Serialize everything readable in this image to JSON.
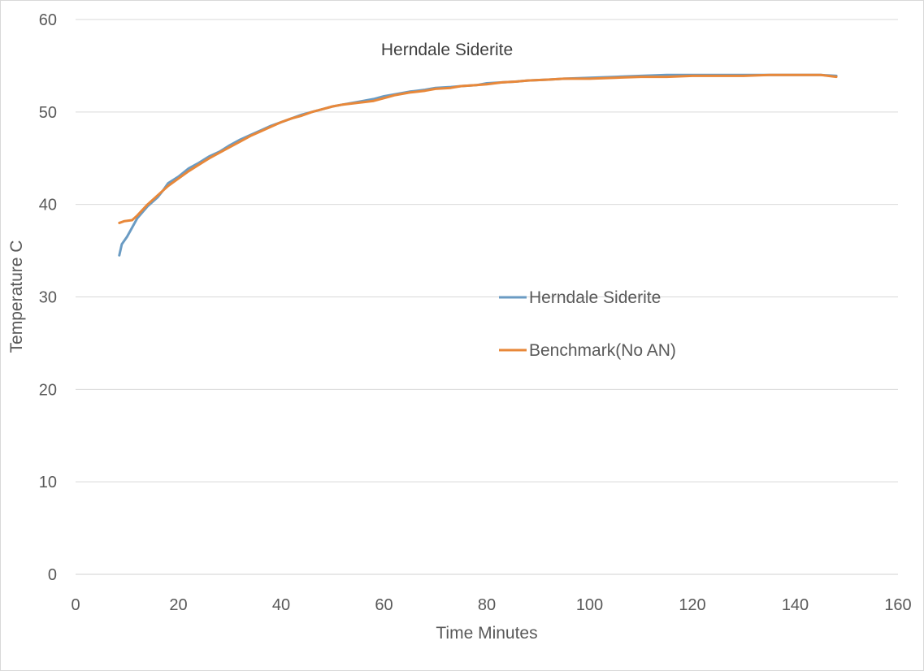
{
  "chart_data": {
    "type": "line",
    "title": "Herndale Siderite",
    "xlabel": "Time Minutes",
    "ylabel": "Temperature C",
    "xlim": [
      0,
      160
    ],
    "ylim": [
      0,
      60
    ],
    "xticks": [
      0,
      20,
      40,
      60,
      80,
      100,
      120,
      140,
      160
    ],
    "yticks": [
      0,
      10,
      20,
      30,
      40,
      50,
      60
    ],
    "grid": "horizontal",
    "legend_position": "center-right",
    "series": [
      {
        "name": "Herndale Siderite",
        "color": "#6a9bc3",
        "points": [
          [
            8.5,
            34.5
          ],
          [
            9,
            35.7
          ],
          [
            10,
            36.5
          ],
          [
            11,
            37.5
          ],
          [
            12,
            38.5
          ],
          [
            14,
            39.8
          ],
          [
            16,
            40.8
          ],
          [
            17,
            41.5
          ],
          [
            18,
            42.3
          ],
          [
            20,
            43.0
          ],
          [
            22,
            43.9
          ],
          [
            24,
            44.5
          ],
          [
            26,
            45.2
          ],
          [
            28,
            45.7
          ],
          [
            30,
            46.4
          ],
          [
            32,
            47.0
          ],
          [
            34,
            47.5
          ],
          [
            36,
            48.0
          ],
          [
            38,
            48.5
          ],
          [
            40,
            48.9
          ],
          [
            42,
            49.3
          ],
          [
            44,
            49.7
          ],
          [
            46,
            50.0
          ],
          [
            48,
            50.3
          ],
          [
            50,
            50.6
          ],
          [
            52,
            50.8
          ],
          [
            55,
            51.1
          ],
          [
            58,
            51.4
          ],
          [
            60,
            51.7
          ],
          [
            62,
            51.9
          ],
          [
            65,
            52.2
          ],
          [
            68,
            52.4
          ],
          [
            70,
            52.6
          ],
          [
            73,
            52.7
          ],
          [
            75,
            52.8
          ],
          [
            78,
            52.9
          ],
          [
            80,
            53.1
          ],
          [
            83,
            53.2
          ],
          [
            86,
            53.3
          ],
          [
            88,
            53.4
          ],
          [
            92,
            53.5
          ],
          [
            95,
            53.6
          ],
          [
            100,
            53.7
          ],
          [
            105,
            53.8
          ],
          [
            110,
            53.9
          ],
          [
            115,
            54.0
          ],
          [
            120,
            54.0
          ],
          [
            125,
            54.0
          ],
          [
            130,
            54.0
          ],
          [
            135,
            54.0
          ],
          [
            140,
            54.0
          ],
          [
            145,
            54.0
          ],
          [
            148,
            53.9
          ]
        ]
      },
      {
        "name": "Benchmark(No AN)",
        "color": "#e8883a",
        "points": [
          [
            8.5,
            38.0
          ],
          [
            9.5,
            38.2
          ],
          [
            11,
            38.3
          ],
          [
            12,
            38.8
          ],
          [
            13,
            39.4
          ],
          [
            14,
            40.0
          ],
          [
            16,
            41.0
          ],
          [
            18,
            42.0
          ],
          [
            20,
            42.8
          ],
          [
            22,
            43.6
          ],
          [
            24,
            44.3
          ],
          [
            26,
            45.0
          ],
          [
            28,
            45.6
          ],
          [
            30,
            46.2
          ],
          [
            32,
            46.8
          ],
          [
            34,
            47.4
          ],
          [
            36,
            47.9
          ],
          [
            38,
            48.4
          ],
          [
            40,
            48.9
          ],
          [
            42,
            49.3
          ],
          [
            44,
            49.6
          ],
          [
            46,
            50.0
          ],
          [
            48,
            50.3
          ],
          [
            50,
            50.6
          ],
          [
            52,
            50.8
          ],
          [
            55,
            51.0
          ],
          [
            58,
            51.2
          ],
          [
            60,
            51.5
          ],
          [
            62,
            51.8
          ],
          [
            65,
            52.1
          ],
          [
            68,
            52.3
          ],
          [
            70,
            52.5
          ],
          [
            73,
            52.6
          ],
          [
            75,
            52.8
          ],
          [
            78,
            52.9
          ],
          [
            80,
            53.0
          ],
          [
            83,
            53.2
          ],
          [
            86,
            53.3
          ],
          [
            88,
            53.4
          ],
          [
            92,
            53.5
          ],
          [
            95,
            53.6
          ],
          [
            100,
            53.6
          ],
          [
            105,
            53.7
          ],
          [
            110,
            53.8
          ],
          [
            115,
            53.8
          ],
          [
            120,
            53.9
          ],
          [
            125,
            53.9
          ],
          [
            130,
            53.9
          ],
          [
            135,
            54.0
          ],
          [
            140,
            54.0
          ],
          [
            145,
            54.0
          ],
          [
            148,
            53.8
          ]
        ]
      }
    ]
  }
}
